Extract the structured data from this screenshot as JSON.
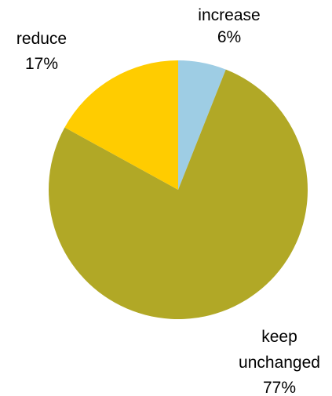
{
  "chart_data": {
    "type": "pie",
    "start": "12 o'clock",
    "direction": "clockwise",
    "slices": [
      {
        "label": [
          "increase"
        ],
        "percent_label": "6%",
        "value": 6,
        "color": "#9ECDE4"
      },
      {
        "label": [
          "keep",
          "unchanged"
        ],
        "percent_label": "77%",
        "value": 77,
        "color": "#B1A826"
      },
      {
        "label": [
          "reduce"
        ],
        "percent_label": "17%",
        "value": 17,
        "color": "#FFCC00"
      }
    ]
  }
}
